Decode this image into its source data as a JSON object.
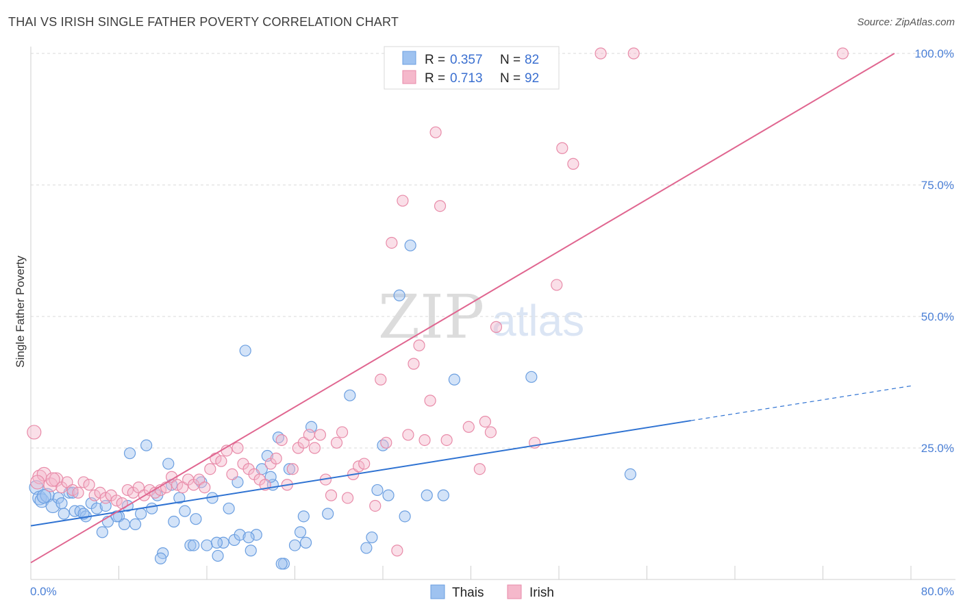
{
  "title": "THAI VS IRISH SINGLE FATHER POVERTY CORRELATION CHART",
  "source": "Source: ZipAtlas.com",
  "watermark": {
    "zip": "ZIP",
    "atlas": "atlas"
  },
  "legend": {
    "rows": [
      {
        "r_label": "R =",
        "r_value": "0.357",
        "n_label": "N =",
        "n_value": "82",
        "color": "#9ec2f0"
      },
      {
        "r_label": "R =",
        "r_value": "0.713",
        "n_label": "N =",
        "n_value": "92",
        "color": "#f5b8cb"
      }
    ]
  },
  "bottom_legend": [
    {
      "label": "Thais",
      "color": "#9ec2f0"
    },
    {
      "label": "Irish",
      "color": "#f5b8cb"
    }
  ],
  "colors": {
    "thais_fill": "#9ec2f0",
    "thais_stroke": "#6a9ee0",
    "thais_line": "#2e72d2",
    "irish_fill": "#f5b8cb",
    "irish_stroke": "#e88aa8",
    "irish_line": "#e06690",
    "grid": "#d9d9d9",
    "axis_label": "#4a7fd6"
  },
  "chart_data": {
    "type": "scatter",
    "title": "THAI VS IRISH SINGLE FATHER POVERTY CORRELATION CHART",
    "xlabel": "",
    "ylabel": "Single Father Poverty",
    "xlim": [
      0,
      80
    ],
    "ylim": [
      0,
      100
    ],
    "x_tick_labels": [
      "0.0%",
      "80.0%"
    ],
    "y_tick_labels": [
      "25.0%",
      "50.0%",
      "75.0%",
      "100.0%"
    ],
    "y_ticks": [
      25,
      50,
      75,
      100
    ],
    "grid": "horizontal dashed",
    "legend_position": "top-center",
    "series": [
      {
        "name": "Thais",
        "r": 0.357,
        "n": 82,
        "trend": {
          "x0": 0,
          "y0": 10.2,
          "x1": 60,
          "y1": 30.2,
          "dashed_to_x": 80,
          "dashed_to_y": 36.8
        },
        "points": [
          [
            0.5,
            17.5
          ],
          [
            0.8,
            15.5
          ],
          [
            1.0,
            15.0
          ],
          [
            1.5,
            16.0
          ],
          [
            2.0,
            14.0
          ],
          [
            2.5,
            15.5
          ],
          [
            3.0,
            12.5
          ],
          [
            3.5,
            16.5
          ],
          [
            4.0,
            13.0
          ],
          [
            4.5,
            13.0
          ],
          [
            5.0,
            12.0
          ],
          [
            5.5,
            14.5
          ],
          [
            6.0,
            13.5
          ],
          [
            6.5,
            9.0
          ],
          [
            7.0,
            11.0
          ],
          [
            8.0,
            12.0
          ],
          [
            8.5,
            10.5
          ],
          [
            9.0,
            24.0
          ],
          [
            10.0,
            12.5
          ],
          [
            10.5,
            25.5
          ],
          [
            11.0,
            13.5
          ],
          [
            11.5,
            16.0
          ],
          [
            12.0,
            5.0
          ],
          [
            12.5,
            22.0
          ],
          [
            13.0,
            11.0
          ],
          [
            13.5,
            15.5
          ],
          [
            14.0,
            13.0
          ],
          [
            14.5,
            6.5
          ],
          [
            15.0,
            11.5
          ],
          [
            15.5,
            18.5
          ],
          [
            16.0,
            6.5
          ],
          [
            16.5,
            15.5
          ],
          [
            17.0,
            4.5
          ],
          [
            17.5,
            7.0
          ],
          [
            18.0,
            13.5
          ],
          [
            18.5,
            7.5
          ],
          [
            19.0,
            8.5
          ],
          [
            19.5,
            43.5
          ],
          [
            20.0,
            5.5
          ],
          [
            20.5,
            8.5
          ],
          [
            21.0,
            21.0
          ],
          [
            21.5,
            23.5
          ],
          [
            22.0,
            18.0
          ],
          [
            22.5,
            27.0
          ],
          [
            23.0,
            3.0
          ],
          [
            23.5,
            21.0
          ],
          [
            24.0,
            6.5
          ],
          [
            24.5,
            9.0
          ],
          [
            25.0,
            7.0
          ],
          [
            25.5,
            29.0
          ],
          [
            27.0,
            12.5
          ],
          [
            29.0,
            35.0
          ],
          [
            30.5,
            6.0
          ],
          [
            31.0,
            8.0
          ],
          [
            31.5,
            17.0
          ],
          [
            32.0,
            25.5
          ],
          [
            32.5,
            16.0
          ],
          [
            33.5,
            54.0
          ],
          [
            34.0,
            12.0
          ],
          [
            34.5,
            63.5
          ],
          [
            36.0,
            16.0
          ],
          [
            37.5,
            16.0
          ],
          [
            38.5,
            38.0
          ],
          [
            45.5,
            38.5
          ],
          [
            54.5,
            20.0
          ],
          [
            3.8,
            16.5
          ],
          [
            1.2,
            15.8
          ],
          [
            6.8,
            14.0
          ],
          [
            9.5,
            10.5
          ],
          [
            11.8,
            4.0
          ],
          [
            14.8,
            6.5
          ],
          [
            16.9,
            7.0
          ],
          [
            19.8,
            8.0
          ],
          [
            22.8,
            3.0
          ],
          [
            2.8,
            14.5
          ],
          [
            4.8,
            12.5
          ],
          [
            7.8,
            12.0
          ],
          [
            8.8,
            14.0
          ],
          [
            12.8,
            18.0
          ],
          [
            18.8,
            18.5
          ],
          [
            21.8,
            19.5
          ],
          [
            24.8,
            12.0
          ]
        ]
      },
      {
        "name": "Irish",
        "r": 0.713,
        "n": 92,
        "trend": {
          "x0": 0,
          "y0": 3.2,
          "x1": 78.5,
          "y1": 100.0
        },
        "points": [
          [
            0.3,
            28.0
          ],
          [
            0.8,
            19.5
          ],
          [
            1.2,
            20.0
          ],
          [
            1.8,
            18.0
          ],
          [
            2.3,
            19.0
          ],
          [
            2.8,
            17.5
          ],
          [
            3.3,
            18.5
          ],
          [
            3.8,
            17.0
          ],
          [
            4.3,
            16.5
          ],
          [
            4.8,
            18.5
          ],
          [
            5.3,
            18.0
          ],
          [
            5.8,
            16.0
          ],
          [
            6.3,
            16.5
          ],
          [
            6.8,
            15.5
          ],
          [
            7.3,
            16.0
          ],
          [
            7.8,
            15.0
          ],
          [
            8.3,
            14.5
          ],
          [
            8.8,
            17.0
          ],
          [
            9.3,
            16.5
          ],
          [
            9.8,
            17.5
          ],
          [
            10.3,
            16.0
          ],
          [
            10.8,
            17.0
          ],
          [
            11.3,
            16.5
          ],
          [
            11.8,
            17.0
          ],
          [
            12.3,
            17.5
          ],
          [
            12.8,
            19.5
          ],
          [
            13.3,
            18.0
          ],
          [
            13.8,
            17.5
          ],
          [
            14.3,
            19.0
          ],
          [
            14.8,
            18.0
          ],
          [
            15.3,
            19.0
          ],
          [
            15.8,
            17.5
          ],
          [
            16.3,
            21.0
          ],
          [
            16.8,
            23.0
          ],
          [
            17.3,
            22.5
          ],
          [
            17.8,
            24.5
          ],
          [
            18.3,
            20.0
          ],
          [
            18.8,
            25.0
          ],
          [
            19.3,
            22.0
          ],
          [
            19.8,
            21.0
          ],
          [
            20.3,
            20.0
          ],
          [
            20.8,
            19.0
          ],
          [
            21.3,
            18.0
          ],
          [
            21.8,
            22.0
          ],
          [
            22.3,
            23.0
          ],
          [
            22.8,
            26.5
          ],
          [
            23.3,
            18.0
          ],
          [
            23.8,
            21.0
          ],
          [
            24.3,
            25.0
          ],
          [
            24.8,
            26.0
          ],
          [
            25.3,
            27.5
          ],
          [
            25.8,
            25.0
          ],
          [
            26.3,
            27.5
          ],
          [
            26.8,
            19.0
          ],
          [
            27.3,
            16.0
          ],
          [
            27.8,
            26.0
          ],
          [
            28.3,
            28.0
          ],
          [
            28.8,
            15.5
          ],
          [
            29.3,
            20.0
          ],
          [
            29.8,
            21.5
          ],
          [
            30.3,
            22.0
          ],
          [
            31.3,
            14.0
          ],
          [
            31.8,
            38.0
          ],
          [
            32.3,
            26.0
          ],
          [
            32.8,
            64.0
          ],
          [
            33.3,
            5.5
          ],
          [
            33.8,
            72.0
          ],
          [
            34.3,
            27.5
          ],
          [
            34.8,
            41.0
          ],
          [
            35.3,
            44.5
          ],
          [
            35.8,
            26.5
          ],
          [
            36.3,
            34.0
          ],
          [
            36.8,
            85.0
          ],
          [
            37.2,
            71.0
          ],
          [
            37.8,
            26.5
          ],
          [
            39.8,
            29.0
          ],
          [
            40.8,
            21.0
          ],
          [
            41.3,
            30.0
          ],
          [
            41.8,
            28.0
          ],
          [
            42.3,
            48.0
          ],
          [
            45.8,
            26.0
          ],
          [
            47.8,
            56.0
          ],
          [
            48.3,
            82.0
          ],
          [
            49.3,
            79.0
          ],
          [
            51.8,
            100.0
          ],
          [
            54.8,
            100.0
          ],
          [
            36.8,
            100.0
          ],
          [
            42.8,
            100.0
          ],
          [
            44.8,
            100.0
          ],
          [
            73.8,
            100.0
          ],
          [
            0.6,
            18.5
          ],
          [
            2.0,
            19.0
          ]
        ]
      }
    ]
  }
}
